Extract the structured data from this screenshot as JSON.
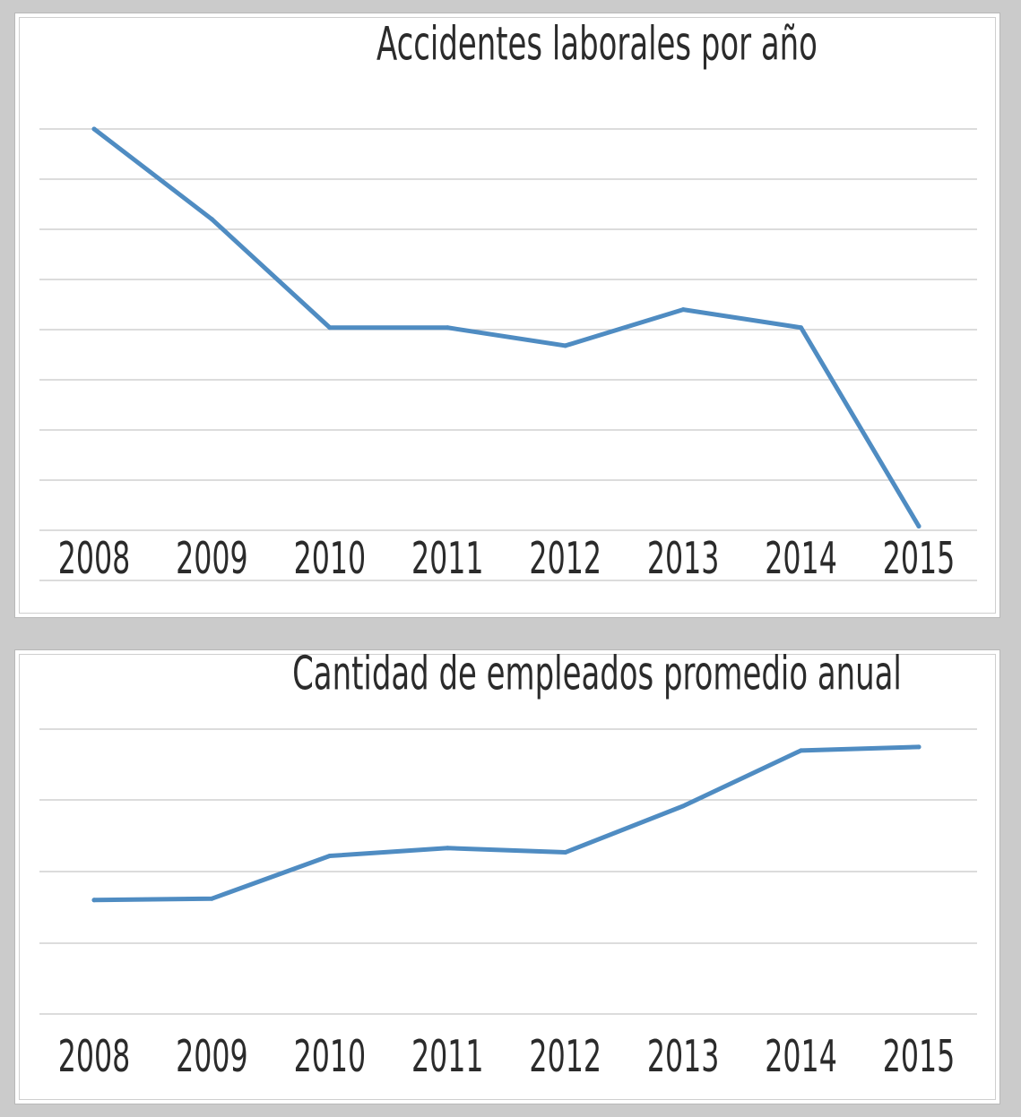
{
  "chart_data": [
    {
      "type": "line",
      "title": "Accidentes laborales por año",
      "categories": [
        "2008",
        "2009",
        "2010",
        "2011",
        "2012",
        "2013",
        "2014",
        "2015"
      ],
      "values": [
        90,
        70,
        46,
        46,
        42,
        50,
        46,
        2
      ],
      "ylim": [
        -10,
        90
      ],
      "grid": true,
      "legend": "none",
      "line_color": "#4f8cc2"
    },
    {
      "type": "line",
      "title": "Cantidad de empleados promedio anual",
      "categories": [
        "2008",
        "2009",
        "2010",
        "2011",
        "2012",
        "2013",
        "2014",
        "2015"
      ],
      "values": [
        16,
        16.2,
        22.2,
        23.3,
        22.7,
        29.2,
        37,
        37.5
      ],
      "ylim": [
        0,
        40
      ],
      "grid": true,
      "legend": "none",
      "line_color": "#4f8cc2"
    }
  ]
}
